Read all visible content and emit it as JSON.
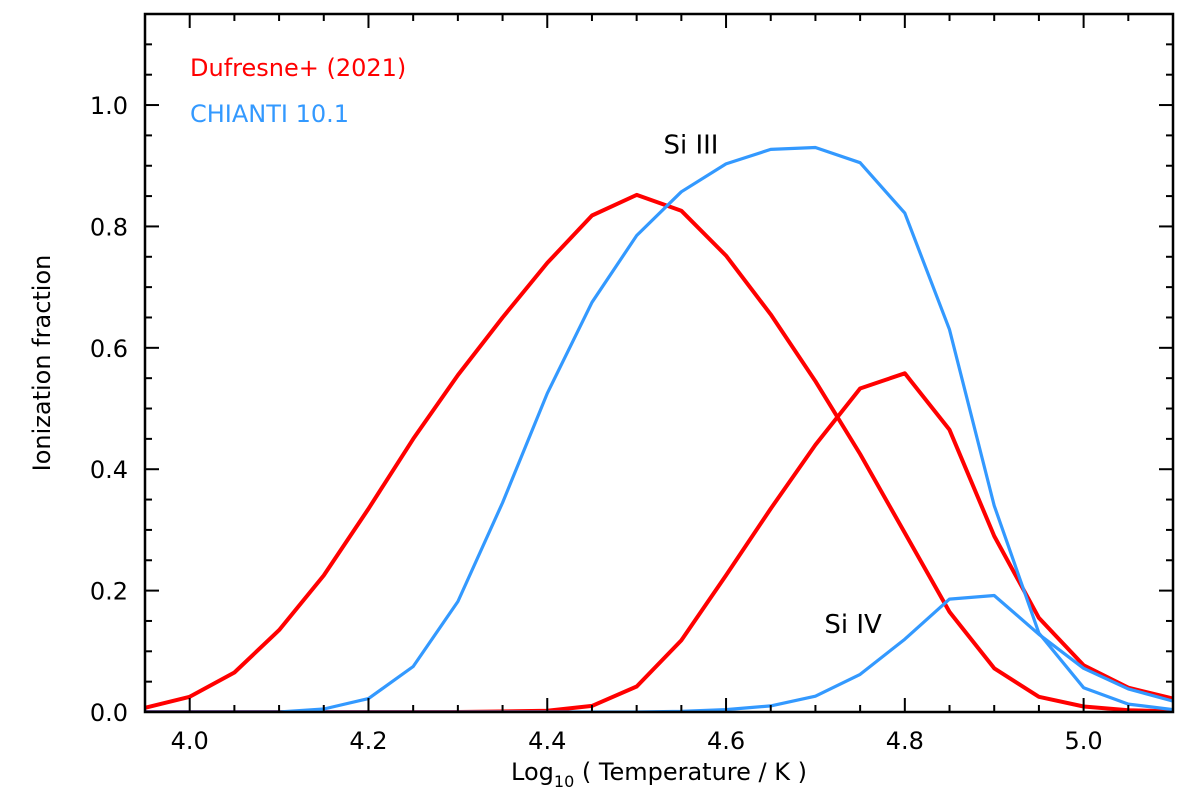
{
  "chart_data": {
    "type": "line",
    "xlabel_prefix": "Log",
    "xlabel_sub": "10",
    "xlabel_rest": " ( Temperature / K )",
    "ylabel": "Ionization fraction",
    "xlim": [
      3.95,
      5.1
    ],
    "ylim": [
      0.0,
      1.15
    ],
    "xticks": [
      4.0,
      4.2,
      4.4,
      4.6,
      4.8,
      5.0
    ],
    "xtick_labels": [
      "4.0",
      "4.2",
      "4.4",
      "4.6",
      "4.8",
      "5.0"
    ],
    "yticks": [
      0.0,
      0.2,
      0.4,
      0.6,
      0.8,
      1.0
    ],
    "ytick_labels": [
      "0.0",
      "0.2",
      "0.4",
      "0.6",
      "0.8",
      "1.0"
    ],
    "x_minor_step": 0.05,
    "y_minor_step": 0.05,
    "legend": [
      {
        "label": "Dufresne+ (2021)",
        "color": "#ff0000"
      },
      {
        "label": "CHIANTI 10.1",
        "color": "#3399ff"
      }
    ],
    "annotations": [
      {
        "text": "Si III",
        "x": 4.53,
        "y": 0.92
      },
      {
        "text": "Si IV",
        "x": 4.71,
        "y": 0.13
      }
    ],
    "series": [
      {
        "name": "Dufresne+ (2021) Si III",
        "color": "#ff0000",
        "x": [
          3.95,
          4.0,
          4.05,
          4.1,
          4.15,
          4.2,
          4.25,
          4.3,
          4.35,
          4.4,
          4.45,
          4.5,
          4.55,
          4.6,
          4.65,
          4.7,
          4.75,
          4.8,
          4.85,
          4.9,
          4.95,
          5.0,
          5.05,
          5.1
        ],
        "y": [
          0.007,
          0.025,
          0.065,
          0.135,
          0.225,
          0.335,
          0.45,
          0.555,
          0.65,
          0.74,
          0.818,
          0.852,
          0.826,
          0.752,
          0.655,
          0.545,
          0.425,
          0.295,
          0.165,
          0.072,
          0.025,
          0.009,
          0.003,
          0.001
        ]
      },
      {
        "name": "Dufresne+ (2021) Si IV",
        "color": "#ff0000",
        "x": [
          3.95,
          4.0,
          4.1,
          4.2,
          4.3,
          4.4,
          4.45,
          4.5,
          4.55,
          4.6,
          4.65,
          4.7,
          4.75,
          4.8,
          4.85,
          4.9,
          4.95,
          5.0,
          5.05,
          5.1
        ],
        "y": [
          0.0,
          0.0,
          0.0,
          0.0,
          0.0,
          0.002,
          0.01,
          0.042,
          0.118,
          0.225,
          0.335,
          0.44,
          0.533,
          0.558,
          0.465,
          0.29,
          0.155,
          0.077,
          0.04,
          0.022
        ]
      },
      {
        "name": "CHIANTI 10.1 Si III",
        "color": "#3399ff",
        "x": [
          3.95,
          4.0,
          4.1,
          4.15,
          4.2,
          4.25,
          4.3,
          4.35,
          4.4,
          4.45,
          4.5,
          4.55,
          4.6,
          4.65,
          4.7,
          4.75,
          4.8,
          4.85,
          4.9,
          4.95,
          5.0,
          5.05,
          5.1
        ],
        "y": [
          0.0,
          0.0,
          0.0,
          0.005,
          0.022,
          0.075,
          0.182,
          0.345,
          0.525,
          0.675,
          0.785,
          0.857,
          0.903,
          0.927,
          0.93,
          0.905,
          0.822,
          0.63,
          0.34,
          0.13,
          0.04,
          0.013,
          0.004
        ]
      },
      {
        "name": "CHIANTI 10.1 Si IV",
        "color": "#3399ff",
        "x": [
          3.95,
          4.0,
          4.2,
          4.4,
          4.5,
          4.55,
          4.6,
          4.65,
          4.7,
          4.75,
          4.8,
          4.85,
          4.9,
          4.95,
          5.0,
          5.05,
          5.1
        ],
        "y": [
          0.0,
          0.0,
          0.0,
          0.0,
          0.0,
          0.001,
          0.004,
          0.01,
          0.026,
          0.062,
          0.12,
          0.186,
          0.192,
          0.128,
          0.072,
          0.038,
          0.018
        ]
      }
    ]
  }
}
